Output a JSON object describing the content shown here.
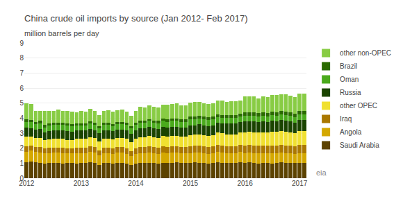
{
  "chart_data": {
    "type": "bar",
    "stacked": true,
    "title": "China crude oil imports by source (Jan 2012- Feb 2017)",
    "subtitle": "million barrels per day",
    "categories": [
      "2012",
      null,
      null,
      null,
      null,
      null,
      null,
      null,
      null,
      null,
      null,
      null,
      "2013",
      null,
      null,
      null,
      null,
      null,
      null,
      null,
      null,
      null,
      null,
      null,
      "2014",
      null,
      null,
      null,
      null,
      null,
      null,
      null,
      null,
      null,
      null,
      null,
      "2015",
      null,
      null,
      null,
      null,
      null,
      null,
      null,
      null,
      null,
      null,
      null,
      "2016",
      null,
      null,
      null,
      null,
      null,
      null,
      null,
      null,
      null,
      null,
      null,
      "2017",
      null
    ],
    "ylim": [
      0,
      9
    ],
    "yticks": [
      0,
      1,
      2,
      3,
      4,
      5,
      6,
      7,
      8,
      9
    ],
    "grid": true,
    "legend": "right",
    "annotations": [
      {
        "text": "eia"
      }
    ],
    "series": [
      {
        "name": "Saudi Arabia",
        "color": "#5c4200",
        "values": [
          1.05,
          1.1,
          1.05,
          1.02,
          0.98,
          1.0,
          1.02,
          1.0,
          0.97,
          1.0,
          1.0,
          0.97,
          1.0,
          1.01,
          1.06,
          1.01,
          0.88,
          1.01,
          1.01,
          0.96,
          1.01,
          1.01,
          0.96,
          0.88,
          0.96,
          1.01,
          1.01,
          1.01,
          1.01,
          0.96,
          1.01,
          1.01,
          1.01,
          1.06,
          1.01,
          1.01,
          1.01,
          1.06,
          1.01,
          1.01,
          0.96,
          1.01,
          1.06,
          1.01,
          1.01,
          1.01,
          1.01,
          1.06,
          1.01,
          1.06,
          1.01,
          0.96,
          1.01,
          1.01,
          0.96,
          1.01,
          1.06,
          1.01,
          1.01,
          1.01,
          1.01,
          1.01
        ]
      },
      {
        "name": "Angola",
        "color": "#d4a800",
        "values": [
          0.72,
          0.76,
          0.71,
          0.71,
          0.66,
          0.66,
          0.71,
          0.71,
          0.71,
          0.66,
          0.66,
          0.71,
          0.66,
          0.66,
          0.71,
          0.71,
          0.66,
          0.66,
          0.66,
          0.66,
          0.71,
          0.71,
          0.66,
          0.61,
          0.66,
          0.66,
          0.66,
          0.71,
          0.66,
          0.66,
          0.71,
          0.66,
          0.71,
          0.66,
          0.66,
          0.66,
          0.66,
          0.66,
          0.71,
          0.66,
          0.66,
          0.66,
          0.71,
          0.71,
          0.66,
          0.66,
          0.66,
          0.71,
          0.66,
          0.66,
          0.66,
          0.71,
          0.66,
          0.66,
          0.71,
          0.66,
          0.66,
          0.66,
          0.66,
          0.61,
          0.66,
          0.66
        ]
      },
      {
        "name": "Iraq",
        "color": "#aa7800",
        "values": [
          0.36,
          0.31,
          0.31,
          0.36,
          0.36,
          0.36,
          0.31,
          0.31,
          0.36,
          0.31,
          0.31,
          0.36,
          0.36,
          0.36,
          0.36,
          0.36,
          0.31,
          0.36,
          0.36,
          0.36,
          0.36,
          0.36,
          0.36,
          0.31,
          0.36,
          0.41,
          0.41,
          0.41,
          0.41,
          0.41,
          0.41,
          0.41,
          0.41,
          0.41,
          0.41,
          0.41,
          0.46,
          0.46,
          0.46,
          0.46,
          0.46,
          0.46,
          0.46,
          0.46,
          0.46,
          0.46,
          0.46,
          0.46,
          0.51,
          0.51,
          0.51,
          0.51,
          0.51,
          0.51,
          0.51,
          0.51,
          0.51,
          0.51,
          0.51,
          0.51,
          0.56,
          0.56
        ]
      },
      {
        "name": "other OPEC",
        "color": "#f0e030",
        "values": [
          0.65,
          0.62,
          0.6,
          0.58,
          0.55,
          0.55,
          0.6,
          0.6,
          0.58,
          0.55,
          0.55,
          0.6,
          0.6,
          0.6,
          0.6,
          0.6,
          0.6,
          0.6,
          0.6,
          0.6,
          0.6,
          0.6,
          0.65,
          0.6,
          0.65,
          0.65,
          0.65,
          0.7,
          0.65,
          0.65,
          0.7,
          0.7,
          0.7,
          0.7,
          0.7,
          0.7,
          0.75,
          0.75,
          0.75,
          0.75,
          0.75,
          0.75,
          0.8,
          0.8,
          0.8,
          0.8,
          0.8,
          0.8,
          0.85,
          0.85,
          0.85,
          0.85,
          0.85,
          0.85,
          0.9,
          0.9,
          0.9,
          0.9,
          0.85,
          0.85,
          0.9,
          0.9
        ]
      },
      {
        "name": "Russia",
        "color": "#1a4400",
        "values": [
          0.6,
          0.55,
          0.55,
          0.6,
          0.5,
          0.55,
          0.55,
          0.55,
          0.55,
          0.6,
          0.55,
          0.55,
          0.55,
          0.55,
          0.55,
          0.5,
          0.55,
          0.55,
          0.55,
          0.55,
          0.55,
          0.55,
          0.55,
          0.55,
          0.55,
          0.6,
          0.6,
          0.6,
          0.6,
          0.6,
          0.6,
          0.6,
          0.6,
          0.6,
          0.6,
          0.6,
          0.65,
          0.6,
          0.65,
          0.65,
          0.65,
          0.65,
          0.65,
          0.65,
          0.7,
          0.7,
          0.7,
          0.7,
          0.75,
          0.7,
          0.75,
          0.7,
          0.75,
          0.7,
          0.75,
          0.7,
          0.75,
          0.75,
          0.75,
          0.7,
          0.75,
          0.75
        ]
      },
      {
        "name": "Oman",
        "color": "#4aaa1c",
        "values": [
          0.38,
          0.38,
          0.38,
          0.38,
          0.33,
          0.38,
          0.38,
          0.38,
          0.38,
          0.38,
          0.38,
          0.33,
          0.33,
          0.33,
          0.38,
          0.38,
          0.33,
          0.38,
          0.38,
          0.33,
          0.38,
          0.38,
          0.38,
          0.38,
          0.38,
          0.38,
          0.38,
          0.38,
          0.38,
          0.38,
          0.38,
          0.38,
          0.38,
          0.38,
          0.38,
          0.38,
          0.38,
          0.38,
          0.38,
          0.38,
          0.38,
          0.38,
          0.38,
          0.38,
          0.38,
          0.38,
          0.38,
          0.38,
          0.38,
          0.38,
          0.38,
          0.38,
          0.38,
          0.38,
          0.38,
          0.38,
          0.38,
          0.38,
          0.38,
          0.38,
          0.38,
          0.38
        ]
      },
      {
        "name": "Brazil",
        "color": "#2a6a00",
        "values": [
          0.18,
          0.18,
          0.13,
          0.18,
          0.18,
          0.13,
          0.13,
          0.13,
          0.13,
          0.13,
          0.13,
          0.13,
          0.13,
          0.13,
          0.13,
          0.13,
          0.13,
          0.13,
          0.13,
          0.13,
          0.13,
          0.13,
          0.13,
          0.13,
          0.13,
          0.13,
          0.13,
          0.13,
          0.13,
          0.18,
          0.18,
          0.18,
          0.18,
          0.18,
          0.18,
          0.18,
          0.18,
          0.18,
          0.18,
          0.18,
          0.18,
          0.18,
          0.18,
          0.18,
          0.18,
          0.18,
          0.18,
          0.18,
          0.22,
          0.22,
          0.22,
          0.22,
          0.22,
          0.22,
          0.22,
          0.22,
          0.22,
          0.22,
          0.22,
          0.22,
          0.22,
          0.22
        ]
      },
      {
        "name": "other non-OPEC",
        "color": "#88cc44",
        "values": [
          1.06,
          1.03,
          0.77,
          0.67,
          0.9,
          0.83,
          0.78,
          0.9,
          0.78,
          0.85,
          0.85,
          0.73,
          0.83,
          0.78,
          0.83,
          0.78,
          0.73,
          0.78,
          0.83,
          0.83,
          0.78,
          0.83,
          0.73,
          0.68,
          0.78,
          0.9,
          0.85,
          0.9,
          0.9,
          0.85,
          0.9,
          0.95,
          0.95,
          1.0,
          0.9,
          0.9,
          0.95,
          1.0,
          0.95,
          0.9,
          0.9,
          0.9,
          0.95,
          1.0,
          0.9,
          0.95,
          0.95,
          0.9,
          1.05,
          1.05,
          1.05,
          1.0,
          1.05,
          1.05,
          1.1,
          1.15,
          1.1,
          1.15,
          1.1,
          1.1,
          1.15,
          1.15
        ]
      }
    ]
  }
}
